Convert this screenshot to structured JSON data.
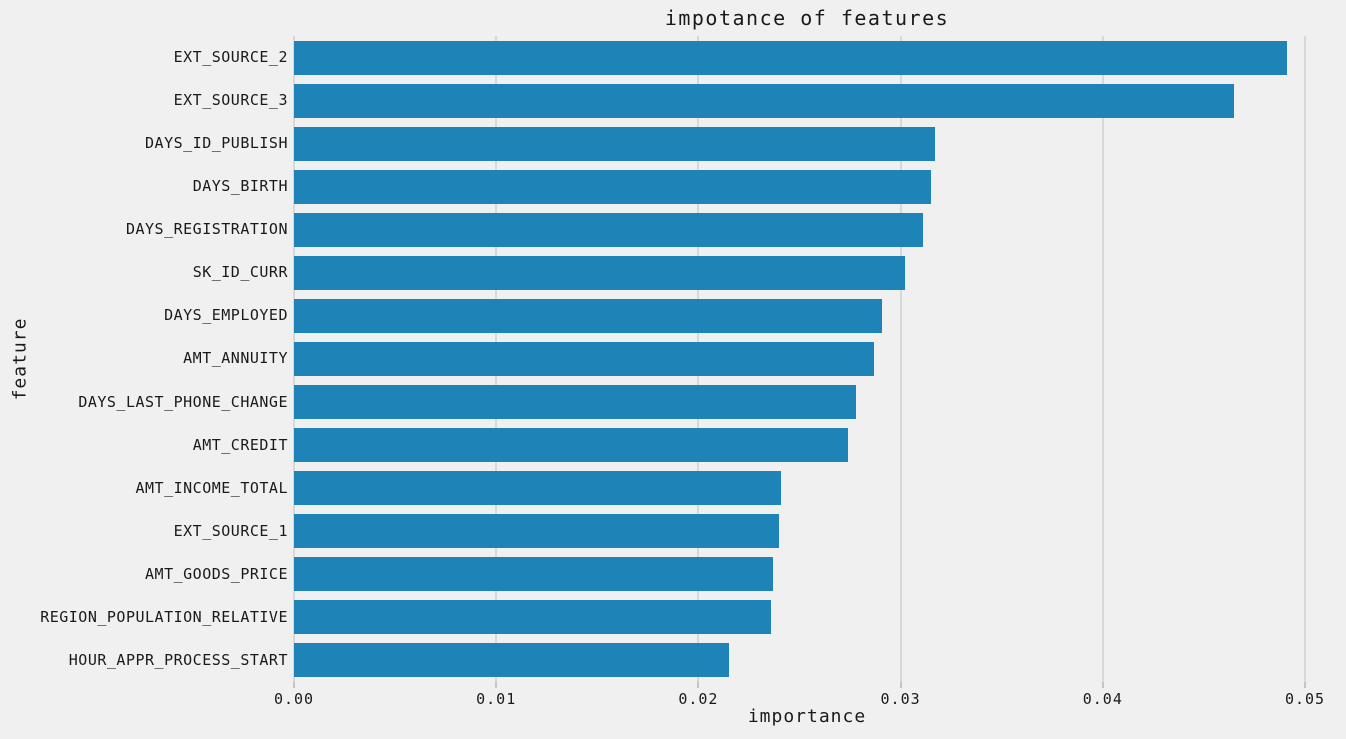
{
  "title": "impotance of features",
  "axes": {
    "x_label": "importance",
    "y_label": "feature"
  },
  "colors": {
    "figure_background": "#f0f0f0",
    "bar": "#1e84b8",
    "gridline": "#d8d8d8",
    "tick_mark": "#c4c4c4",
    "text": "#1a1a1a"
  },
  "chart_data": {
    "type": "bar",
    "orientation": "horizontal",
    "title": "impotance of features",
    "xlabel": "importance",
    "ylabel": "feature",
    "xlim": [
      0,
      0.05
    ],
    "grid": true,
    "legend": false,
    "x_tick_values": [
      0,
      0.01,
      0.02,
      0.03,
      0.04,
      0.05
    ],
    "x_tick_labels": [
      "0.00",
      "0.01",
      "0.02",
      "0.03",
      "0.04",
      "0.05"
    ],
    "categories": [
      "EXT_SOURCE_2",
      "EXT_SOURCE_3",
      "DAYS_ID_PUBLISH",
      "DAYS_BIRTH",
      "DAYS_REGISTRATION",
      "SK_ID_CURR",
      "DAYS_EMPLOYED",
      "AMT_ANNUITY",
      "DAYS_LAST_PHONE_CHANGE",
      "AMT_CREDIT",
      "AMT_INCOME_TOTAL",
      "EXT_SOURCE_1",
      "AMT_GOODS_PRICE",
      "REGION_POPULATION_RELATIVE",
      "HOUR_APPR_PROCESS_START"
    ],
    "values": [
      0.0491,
      0.0465,
      0.0317,
      0.0315,
      0.0311,
      0.0302,
      0.0291,
      0.0287,
      0.0278,
      0.0274,
      0.0241,
      0.024,
      0.0237,
      0.0236,
      0.0215
    ]
  }
}
